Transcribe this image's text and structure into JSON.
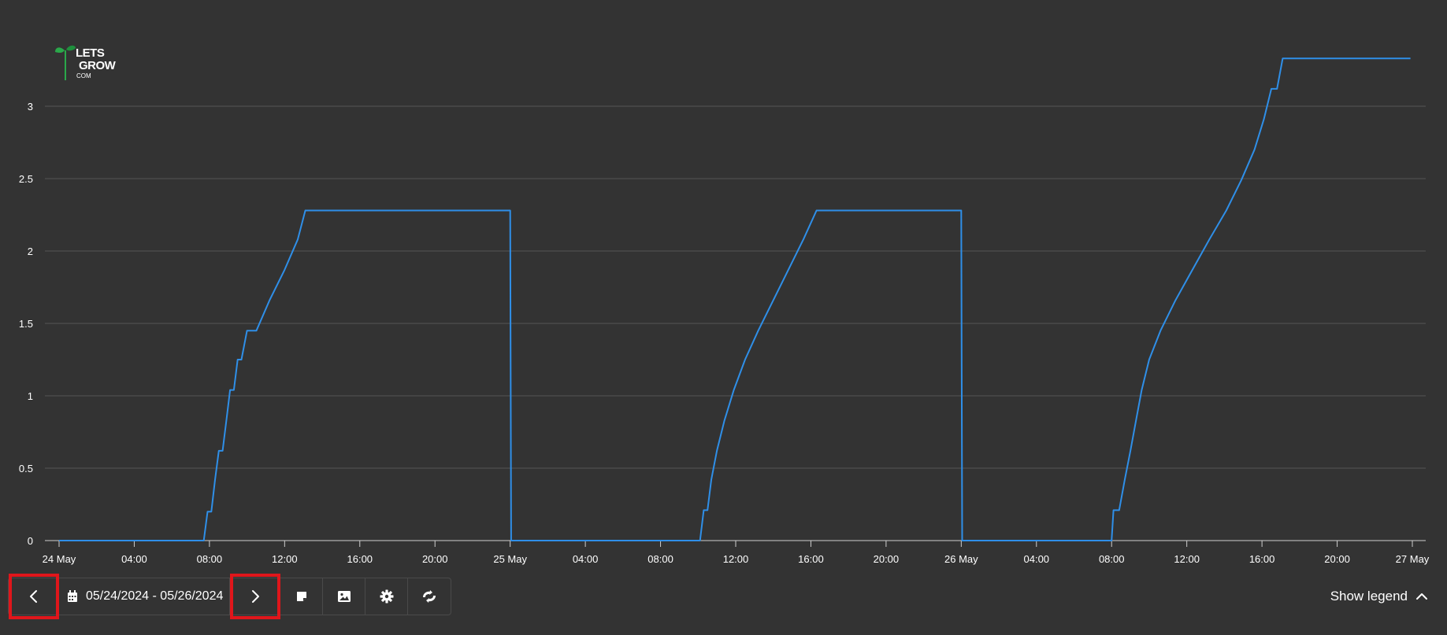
{
  "brand": {
    "line1": "LETS",
    "line2": "GROW",
    "line3": "COM"
  },
  "chart_data": {
    "type": "line",
    "title": "",
    "xlabel": "",
    "ylabel": "",
    "ylim": [
      0,
      3.35
    ],
    "yticks": [
      0,
      0.5,
      1,
      1.5,
      2,
      2.5,
      3
    ],
    "ytick_labels": [
      "0",
      "0.5",
      "1",
      "1.5",
      "2",
      "2.5",
      "3"
    ],
    "x_range_hours": [
      0,
      72
    ],
    "xtick_labels": [
      "24 May",
      "04:00",
      "08:00",
      "12:00",
      "16:00",
      "20:00",
      "25 May",
      "04:00",
      "08:00",
      "12:00",
      "16:00",
      "20:00",
      "26 May",
      "04:00",
      "08:00",
      "12:00",
      "16:00",
      "20:00",
      "27 May"
    ],
    "grid": true,
    "line_color": "#2f8fe8",
    "series": [
      {
        "name": "",
        "x": [
          0,
          7.7,
          7.9,
          8.1,
          8.3,
          8.5,
          8.7,
          8.9,
          9.1,
          9.3,
          9.5,
          9.7,
          10.0,
          10.5,
          11.2,
          12.0,
          12.7,
          13.1,
          24.0,
          24.05,
          34.1,
          34.3,
          34.5,
          34.7,
          35.0,
          35.4,
          35.9,
          36.5,
          37.2,
          38.0,
          38.8,
          39.6,
          40.3,
          40.8,
          48.0,
          48.05,
          56.0,
          56.1,
          56.4,
          56.7,
          57.0,
          57.3,
          57.6,
          58.0,
          58.6,
          59.4,
          60.3,
          61.2,
          62.1,
          62.9,
          63.6,
          64.1,
          64.5,
          64.8,
          65.1,
          65.5,
          71.9
        ],
        "y": [
          0,
          0,
          0.2,
          0.2,
          0.42,
          0.62,
          0.62,
          0.83,
          1.04,
          1.04,
          1.25,
          1.25,
          1.45,
          1.45,
          1.66,
          1.87,
          2.08,
          2.28,
          2.28,
          0,
          0,
          0.21,
          0.21,
          0.42,
          0.62,
          0.83,
          1.04,
          1.25,
          1.45,
          1.66,
          1.87,
          2.08,
          2.28,
          2.28,
          2.28,
          0,
          0,
          0.21,
          0.21,
          0.42,
          0.62,
          0.83,
          1.04,
          1.25,
          1.45,
          1.66,
          1.87,
          2.08,
          2.28,
          2.49,
          2.7,
          2.91,
          3.12,
          3.12,
          3.33,
          3.33,
          3.33
        ]
      }
    ]
  },
  "toolbar": {
    "prev_icon": "chevron-left-icon",
    "calendar_icon": "calendar-icon",
    "date_range": "05/24/2024 - 05/26/2024",
    "next_icon": "chevron-right-icon",
    "note_icon": "sticky-note-icon",
    "image_icon": "image-icon",
    "settings_icon": "gear-icon",
    "compare_icon": "chart-compare-icon",
    "highlight_color": "#e0161b"
  },
  "legend_toggle": {
    "label": "Show legend",
    "icon": "chevron-up-icon"
  }
}
